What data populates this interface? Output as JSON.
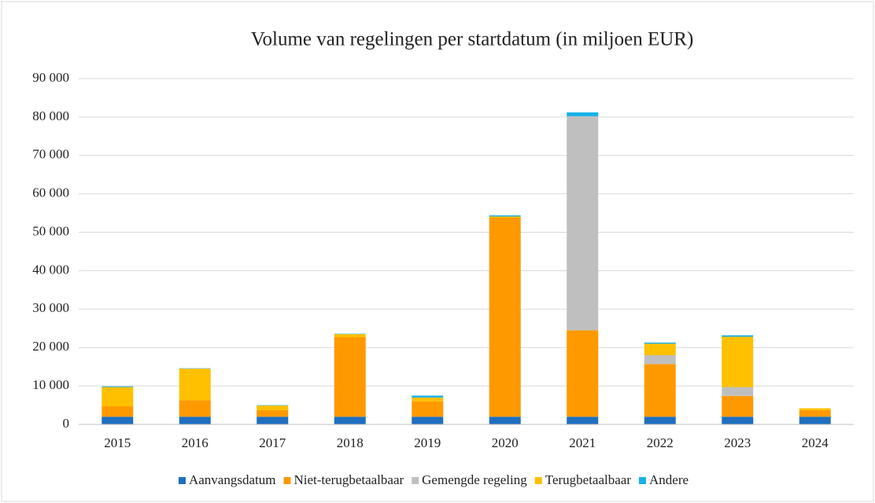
{
  "chart_data": {
    "type": "bar",
    "stacked": true,
    "title": "Volume van regelingen per startdatum (in miljoen EUR)",
    "categories": [
      "2015",
      "2016",
      "2017",
      "2018",
      "2019",
      "2020",
      "2021",
      "2022",
      "2023",
      "2024"
    ],
    "series": [
      {
        "name": "Aanvangsdatum",
        "color": "#1f6fbf",
        "values": [
          2000,
          2000,
          2000,
          2000,
          2000,
          2000,
          2000,
          2000,
          2000,
          2000
        ]
      },
      {
        "name": "Niet-terugbetaalbaar",
        "color": "#ff9900",
        "values": [
          2700,
          4300,
          1700,
          20700,
          4000,
          51800,
          22500,
          13700,
          5400,
          1700
        ]
      },
      {
        "name": "Gemengde regeling",
        "color": "#bfbfbf",
        "values": [
          0,
          0,
          0,
          0,
          0,
          0,
          55700,
          2300,
          2300,
          0
        ]
      },
      {
        "name": "Terugbetaalbaar",
        "color": "#ffc000",
        "values": [
          5000,
          8200,
          1200,
          800,
          1000,
          300,
          0,
          3000,
          13100,
          500
        ]
      },
      {
        "name": "Andere",
        "color": "#17b0e8",
        "values": [
          200,
          100,
          100,
          100,
          500,
          300,
          1000,
          300,
          400,
          0
        ]
      }
    ],
    "ylim": [
      0,
      90000
    ],
    "yticks": [
      0,
      {
        "value": 10000,
        "label": "10 000"
      },
      {
        "value": 20000,
        "label": "20 000"
      },
      {
        "value": 30000,
        "label": "30 000"
      },
      {
        "value": 40000,
        "label": "40 000"
      },
      {
        "value": 50000,
        "label": "50 000"
      },
      {
        "value": 60000,
        "label": "60 000"
      },
      {
        "value": 70000,
        "label": "70 000"
      },
      {
        "value": 80000,
        "label": "80 000"
      },
      {
        "value": 90000,
        "label": "90 000"
      }
    ],
    "grid": true,
    "legend": "bottom"
  }
}
